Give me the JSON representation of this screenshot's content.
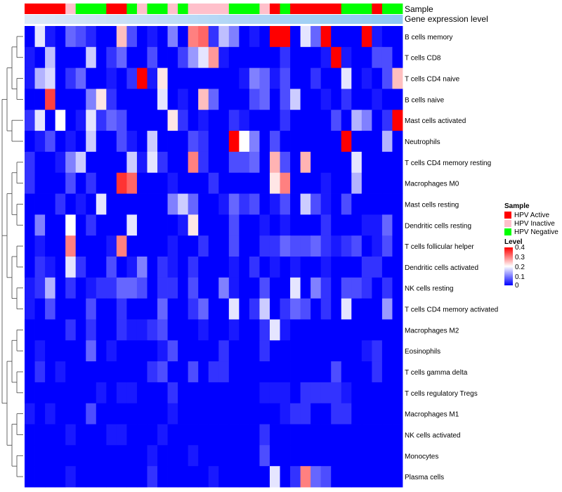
{
  "chart_data": {
    "type": "heatmap",
    "title": "",
    "annotation_labels": [
      "Sample",
      "Gene expression level"
    ],
    "legend": {
      "sample_title": "Sample",
      "sample_entries": [
        {
          "label": "HPV Active",
          "color": "#ff0000"
        },
        {
          "label": "HPV Inactive",
          "color": "#ffc0cb"
        },
        {
          "label": "HPV Negative",
          "color": "#00ff00"
        }
      ],
      "level_title": "Level",
      "level_ticks": [
        "0.4",
        "0.3",
        "0.2",
        "0.1",
        "0"
      ],
      "level_tick_values": [
        0.4,
        0.3,
        0.2,
        0.1,
        0
      ],
      "color_scale": {
        "low": "#0000ff",
        "mid": "#ffffff",
        "high": "#ff0000",
        "min": 0,
        "mid_value": 0.2,
        "max": 0.4
      }
    },
    "sample_groups": [
      "Active",
      "Active",
      "Active",
      "Active",
      "Inactive",
      "Negative",
      "Negative",
      "Negative",
      "Active",
      "Active",
      "Negative",
      "Inactive",
      "Negative",
      "Negative",
      "Inactive",
      "Negative",
      "Inactive",
      "Inactive",
      "Inactive",
      "Inactive",
      "Negative",
      "Negative",
      "Negative",
      "Inactive",
      "Active",
      "Negative",
      "Active",
      "Active",
      "Active",
      "Active",
      "Active",
      "Negative",
      "Negative",
      "Negative",
      "Active",
      "Negative",
      "Negative"
    ],
    "rows": [
      "B cells memory",
      "T cells CD8",
      "T cells CD4 naive",
      "B cells naive",
      "Mast cells activated",
      "Neutrophils",
      "T cells CD4 memory resting",
      "Macrophages M0",
      "Mast cells resting",
      "Dendritic cells resting",
      "T cells follicular helper",
      "Dendritic cells activated",
      "NK cells resting",
      "T cells CD4 memory activated",
      "Macrophages M2",
      "Eosinophils",
      "T cells gamma delta",
      "T cells regulatory  Tregs",
      "Macrophages M1",
      "NK cells activated",
      "Monocytes",
      "Plasma cells"
    ],
    "values": [
      [
        0.0,
        0.18,
        0.02,
        0.0,
        0.08,
        0.06,
        0.03,
        0.0,
        0.0,
        0.25,
        0.06,
        0.0,
        0.02,
        0.0,
        0.1,
        0.0,
        0.3,
        0.32,
        0.04,
        0.15,
        0.1,
        0.0,
        0.02,
        0.0,
        0.4,
        0.4,
        0.0,
        0.18,
        0.08,
        0.4,
        0.0,
        0.0,
        0.0,
        0.4,
        0.02,
        0.0,
        0.0
      ],
      [
        0.02,
        0.0,
        0.15,
        0.0,
        0.0,
        0.0,
        0.16,
        0.0,
        0.04,
        0.08,
        0.0,
        0.0,
        0.06,
        0.0,
        0.0,
        0.05,
        0.12,
        0.18,
        0.28,
        0.02,
        0.0,
        0.0,
        0.0,
        0.0,
        0.0,
        0.04,
        0.0,
        0.0,
        0.0,
        0.02,
        0.4,
        0.02,
        0.0,
        0.0,
        0.06,
        0.06,
        0.0
      ],
      [
        0.02,
        0.14,
        0.17,
        0.0,
        0.04,
        0.08,
        0.0,
        0.0,
        0.02,
        0.0,
        0.04,
        0.4,
        0.02,
        0.22,
        0.0,
        0.0,
        0.0,
        0.0,
        0.0,
        0.0,
        0.0,
        0.02,
        0.1,
        0.08,
        0.02,
        0.06,
        0.0,
        0.0,
        0.04,
        0.0,
        0.0,
        0.18,
        0.0,
        0.02,
        0.0,
        0.06,
        0.25
      ],
      [
        0.0,
        0.0,
        0.35,
        0.0,
        0.0,
        0.0,
        0.1,
        0.22,
        0.04,
        0.0,
        0.0,
        0.0,
        0.0,
        0.18,
        0.0,
        0.02,
        0.0,
        0.25,
        0.08,
        0.0,
        0.0,
        0.0,
        0.06,
        0.08,
        0.0,
        0.06,
        0.16,
        0.0,
        0.0,
        0.02,
        0.0,
        0.04,
        0.0,
        0.0,
        0.02,
        0.0,
        0.0
      ],
      [
        0.04,
        0.18,
        0.0,
        0.2,
        0.0,
        0.02,
        0.18,
        0.04,
        0.08,
        0.06,
        0.0,
        0.0,
        0.0,
        0.0,
        0.22,
        0.04,
        0.0,
        0.02,
        0.0,
        0.0,
        0.04,
        0.02,
        0.0,
        0.0,
        0.0,
        0.04,
        0.0,
        0.0,
        0.0,
        0.0,
        0.06,
        0.0,
        0.14,
        0.1,
        0.0,
        0.04,
        0.4
      ],
      [
        0.0,
        0.02,
        0.06,
        0.0,
        0.02,
        0.0,
        0.16,
        0.0,
        0.0,
        0.06,
        0.02,
        0.0,
        0.16,
        0.0,
        0.0,
        0.0,
        0.06,
        0.04,
        0.0,
        0.0,
        0.4,
        0.2,
        0.1,
        0.0,
        0.06,
        0.0,
        0.0,
        0.0,
        0.0,
        0.0,
        0.0,
        0.4,
        0.0,
        0.0,
        0.0,
        0.14,
        0.0
      ],
      [
        0.04,
        0.0,
        0.0,
        0.02,
        0.1,
        0.16,
        0.0,
        0.0,
        0.0,
        0.0,
        0.16,
        0.02,
        0.18,
        0.04,
        0.0,
        0.0,
        0.3,
        0.04,
        0.0,
        0.0,
        0.06,
        0.06,
        0.08,
        0.0,
        0.26,
        0.06,
        0.0,
        0.26,
        0.0,
        0.0,
        0.0,
        0.0,
        0.18,
        0.0,
        0.0,
        0.0,
        0.0
      ],
      [
        0.04,
        0.0,
        0.0,
        0.0,
        0.06,
        0.0,
        0.04,
        0.0,
        0.0,
        0.36,
        0.32,
        0.0,
        0.0,
        0.0,
        0.02,
        0.0,
        0.0,
        0.0,
        0.04,
        0.0,
        0.0,
        0.0,
        0.0,
        0.0,
        0.22,
        0.3,
        0.0,
        0.0,
        0.0,
        0.02,
        0.0,
        0.0,
        0.14,
        0.0,
        0.0,
        0.0,
        0.0
      ],
      [
        0.0,
        0.0,
        0.0,
        0.04,
        0.0,
        0.02,
        0.0,
        0.18,
        0.0,
        0.0,
        0.0,
        0.0,
        0.0,
        0.0,
        0.1,
        0.16,
        0.08,
        0.0,
        0.0,
        0.02,
        0.08,
        0.04,
        0.06,
        0.0,
        0.02,
        0.06,
        0.0,
        0.16,
        0.06,
        0.02,
        0.0,
        0.06,
        0.0,
        0.0,
        0.0,
        0.0,
        0.0
      ],
      [
        0.0,
        0.1,
        0.0,
        0.0,
        0.2,
        0.0,
        0.04,
        0.0,
        0.0,
        0.0,
        0.18,
        0.0,
        0.0,
        0.0,
        0.0,
        0.02,
        0.22,
        0.0,
        0.0,
        0.0,
        0.06,
        0.0,
        0.0,
        0.02,
        0.0,
        0.02,
        0.0,
        0.0,
        0.0,
        0.04,
        0.0,
        0.0,
        0.0,
        0.02,
        0.02,
        0.08,
        0.0
      ],
      [
        0.0,
        0.02,
        0.0,
        0.0,
        0.3,
        0.0,
        0.0,
        0.0,
        0.02,
        0.3,
        0.0,
        0.0,
        0.0,
        0.0,
        0.02,
        0.0,
        0.0,
        0.04,
        0.0,
        0.0,
        0.06,
        0.0,
        0.0,
        0.04,
        0.04,
        0.08,
        0.06,
        0.06,
        0.08,
        0.04,
        0.02,
        0.04,
        0.06,
        0.0,
        0.02,
        0.06,
        0.0
      ],
      [
        0.0,
        0.04,
        0.02,
        0.0,
        0.18,
        0.04,
        0.0,
        0.0,
        0.06,
        0.0,
        0.02,
        0.1,
        0.0,
        0.04,
        0.02,
        0.0,
        0.04,
        0.0,
        0.0,
        0.0,
        0.02,
        0.0,
        0.04,
        0.0,
        0.02,
        0.0,
        0.02,
        0.0,
        0.0,
        0.02,
        0.0,
        0.0,
        0.0,
        0.04,
        0.04,
        0.0,
        0.0
      ],
      [
        0.02,
        0.04,
        0.14,
        0.0,
        0.04,
        0.0,
        0.02,
        0.04,
        0.04,
        0.08,
        0.08,
        0.06,
        0.0,
        0.04,
        0.04,
        0.0,
        0.06,
        0.0,
        0.0,
        0.1,
        0.02,
        0.0,
        0.0,
        0.06,
        0.0,
        0.0,
        0.18,
        0.0,
        0.1,
        0.04,
        0.0,
        0.06,
        0.06,
        0.04,
        0.0,
        0.04,
        0.0
      ],
      [
        0.02,
        0.0,
        0.06,
        0.0,
        0.0,
        0.0,
        0.06,
        0.0,
        0.0,
        0.04,
        0.0,
        0.0,
        0.0,
        0.08,
        0.0,
        0.0,
        0.04,
        0.08,
        0.0,
        0.0,
        0.18,
        0.0,
        0.04,
        0.16,
        0.0,
        0.04,
        0.08,
        0.06,
        0.0,
        0.04,
        0.0,
        0.18,
        0.0,
        0.0,
        0.0,
        0.12,
        0.0
      ],
      [
        0.0,
        0.0,
        0.0,
        0.0,
        0.04,
        0.0,
        0.04,
        0.0,
        0.0,
        0.04,
        0.02,
        0.02,
        0.04,
        0.06,
        0.0,
        0.0,
        0.0,
        0.02,
        0.0,
        0.0,
        0.02,
        0.0,
        0.0,
        0.04,
        0.18,
        0.02,
        0.0,
        0.0,
        0.0,
        0.0,
        0.0,
        0.0,
        0.0,
        0.0,
        0.0,
        0.0,
        0.0
      ],
      [
        0.0,
        0.02,
        0.0,
        0.0,
        0.0,
        0.0,
        0.08,
        0.0,
        0.02,
        0.0,
        0.0,
        0.0,
        0.0,
        0.02,
        0.06,
        0.0,
        0.0,
        0.0,
        0.0,
        0.04,
        0.0,
        0.0,
        0.0,
        0.04,
        0.0,
        0.0,
        0.0,
        0.0,
        0.0,
        0.0,
        0.0,
        0.0,
        0.0,
        0.02,
        0.04,
        0.0,
        0.0
      ],
      [
        0.0,
        0.04,
        0.0,
        0.02,
        0.0,
        0.0,
        0.0,
        0.0,
        0.0,
        0.0,
        0.0,
        0.0,
        0.04,
        0.06,
        0.0,
        0.0,
        0.06,
        0.0,
        0.04,
        0.04,
        0.0,
        0.0,
        0.0,
        0.0,
        0.0,
        0.0,
        0.0,
        0.0,
        0.0,
        0.0,
        0.06,
        0.0,
        0.0,
        0.0,
        0.04,
        0.0,
        0.0
      ],
      [
        0.0,
        0.0,
        0.0,
        0.0,
        0.0,
        0.0,
        0.0,
        0.02,
        0.0,
        0.02,
        0.02,
        0.0,
        0.0,
        0.0,
        0.04,
        0.0,
        0.0,
        0.0,
        0.0,
        0.0,
        0.0,
        0.0,
        0.0,
        0.02,
        0.02,
        0.02,
        0.0,
        0.04,
        0.04,
        0.04,
        0.04,
        0.02,
        0.0,
        0.0,
        0.0,
        0.0,
        0.0
      ],
      [
        0.02,
        0.0,
        0.02,
        0.0,
        0.0,
        0.0,
        0.06,
        0.0,
        0.0,
        0.0,
        0.0,
        0.0,
        0.0,
        0.0,
        0.02,
        0.0,
        0.0,
        0.0,
        0.0,
        0.0,
        0.0,
        0.0,
        0.0,
        0.0,
        0.0,
        0.02,
        0.04,
        0.04,
        0.0,
        0.0,
        0.04,
        0.04,
        0.0,
        0.0,
        0.0,
        0.0,
        0.0
      ],
      [
        0.0,
        0.0,
        0.0,
        0.0,
        0.02,
        0.0,
        0.0,
        0.0,
        0.02,
        0.02,
        0.0,
        0.0,
        0.0,
        0.02,
        0.0,
        0.0,
        0.0,
        0.0,
        0.0,
        0.0,
        0.0,
        0.0,
        0.0,
        0.04,
        0.0,
        0.0,
        0.0,
        0.0,
        0.0,
        0.0,
        0.0,
        0.0,
        0.0,
        0.0,
        0.0,
        0.0,
        0.0
      ],
      [
        0.0,
        0.0,
        0.0,
        0.0,
        0.0,
        0.0,
        0.0,
        0.0,
        0.0,
        0.0,
        0.0,
        0.0,
        0.02,
        0.0,
        0.0,
        0.0,
        0.02,
        0.0,
        0.0,
        0.0,
        0.0,
        0.0,
        0.0,
        0.06,
        0.0,
        0.0,
        0.0,
        0.0,
        0.0,
        0.0,
        0.0,
        0.0,
        0.0,
        0.0,
        0.0,
        0.0,
        0.0
      ],
      [
        0.0,
        0.0,
        0.0,
        0.0,
        0.02,
        0.0,
        0.0,
        0.0,
        0.0,
        0.0,
        0.0,
        0.0,
        0.04,
        0.0,
        0.0,
        0.0,
        0.0,
        0.0,
        0.02,
        0.0,
        0.0,
        0.0,
        0.0,
        0.0,
        0.18,
        0.0,
        0.04,
        0.3,
        0.08,
        0.06,
        0.0,
        0.0,
        0.0,
        0.0,
        0.0,
        0.0,
        0.0
      ]
    ]
  }
}
